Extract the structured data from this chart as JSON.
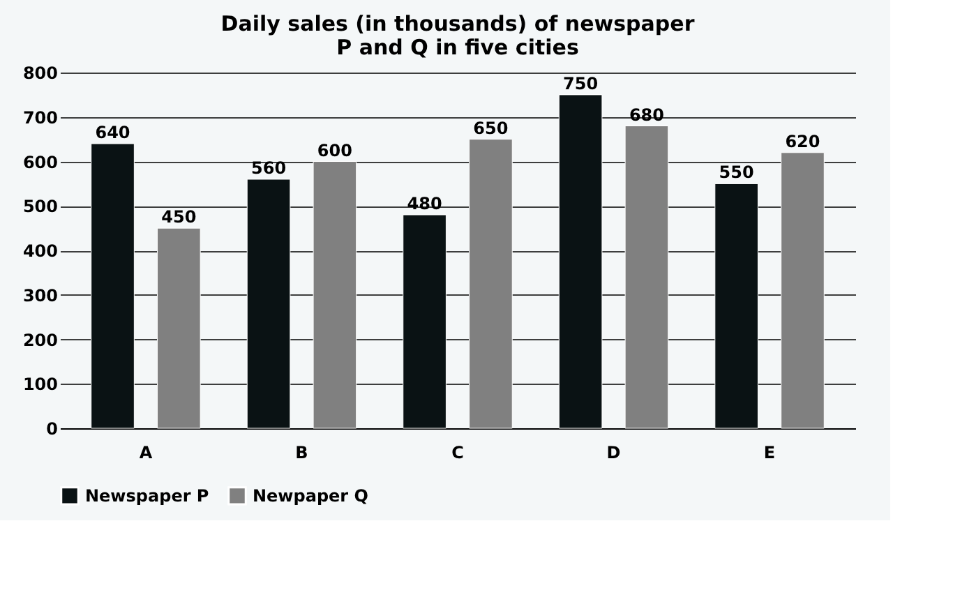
{
  "chart_data": {
    "type": "bar",
    "title": [
      "Daily sales (in thousands) of newspaper",
      "P and Q in five cities"
    ],
    "categories": [
      "A",
      "B",
      "C",
      "D",
      "E"
    ],
    "series": [
      {
        "name": "Newspaper P",
        "color": "#0a1214",
        "values": [
          640,
          560,
          480,
          750,
          550
        ]
      },
      {
        "name": "Newpaper Q",
        "color": "#808080",
        "values": [
          450,
          600,
          650,
          680,
          620
        ]
      }
    ],
    "ylim": [
      0,
      800
    ],
    "yticks": [
      0,
      100,
      200,
      300,
      400,
      500,
      600,
      700,
      800
    ],
    "grid": "y",
    "legend": "bottom",
    "data_labels": true
  }
}
